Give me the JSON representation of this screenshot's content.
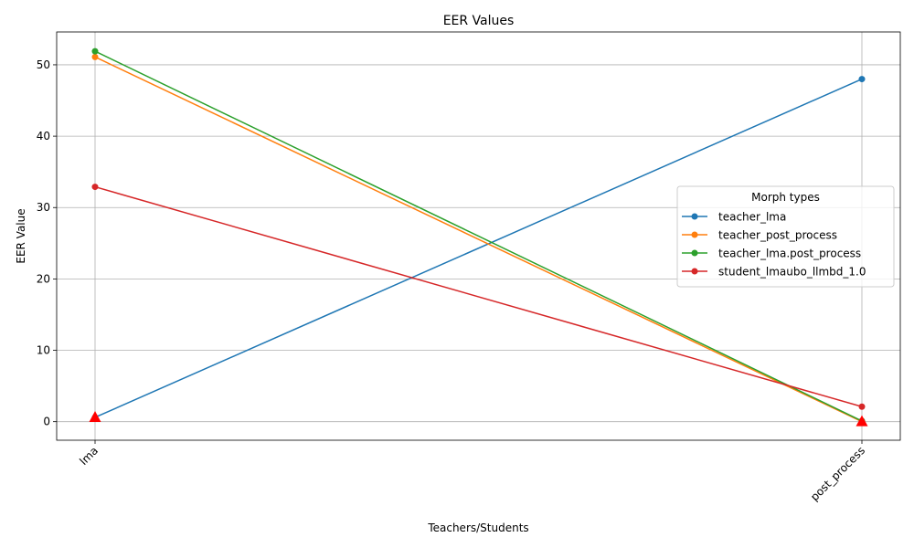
{
  "chart_data": {
    "type": "line",
    "title": "EER Values",
    "xlabel": "Teachers/Students",
    "ylabel": "EER Value",
    "categories": [
      "lma",
      "post_process"
    ],
    "ylim": [
      -2.6,
      54.6
    ],
    "yticks": [
      0,
      10,
      20,
      30,
      40,
      50
    ],
    "grid": true,
    "legend": {
      "title": "Morph types",
      "placement": "center-right"
    },
    "series": [
      {
        "name": "teacher_lma",
        "values": [
          0.6,
          48.0
        ],
        "color": "#1f77b4"
      },
      {
        "name": "teacher_post_process",
        "values": [
          51.1,
          0.0
        ],
        "color": "#ff7f0e"
      },
      {
        "name": "teacher_lma.post_process",
        "values": [
          51.9,
          0.1
        ],
        "color": "#2ca02c"
      },
      {
        "name": "student_lmaubo_llmbd_1.0",
        "values": [
          32.9,
          2.1
        ],
        "color": "#d62728"
      }
    ],
    "minimum_markers": {
      "color": "#ff0000",
      "shape": "triangle",
      "points": [
        {
          "category": "lma",
          "value": 0.6
        },
        {
          "category": "post_process",
          "value": 0.0
        }
      ]
    }
  }
}
